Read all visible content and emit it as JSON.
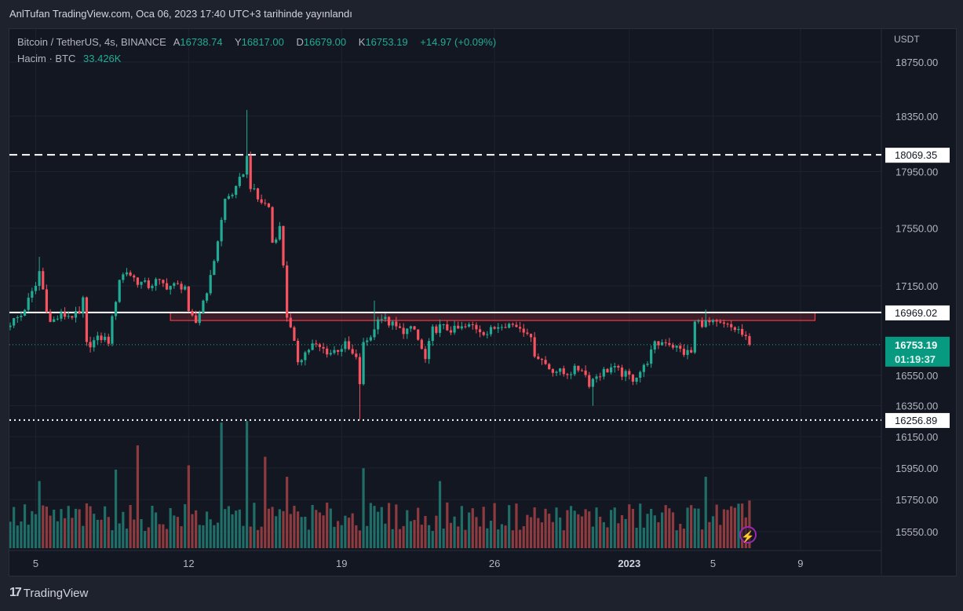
{
  "header": {
    "published": "AnlTufan TradingView.com, Oca 06, 2023 17:40 UTC+3 tarihinde yayınlandı"
  },
  "legend": {
    "symbol": "Bitcoin / TetherUS, 4s, BINANCE",
    "open_label": "A",
    "open": "16738.74",
    "high_label": "Y",
    "high": "16817.00",
    "low_label": "D",
    "low": "16679.00",
    "close_label": "K",
    "close": "16753.19",
    "change": "+14.97 (+0.09%)",
    "volume_label": "Hacim · BTC",
    "volume": "33.426K"
  },
  "price_axis": {
    "currency": "USDT"
  },
  "footer": {
    "brand": "TradingView",
    "logo_text": "TV"
  },
  "colors": {
    "up": "#22ab94",
    "down": "#f7525f",
    "vol_up": "#1f6e68",
    "vol_down": "#8e3b40",
    "bg": "#131722",
    "grid": "#1f2330",
    "zone": "#f23645"
  },
  "chart_data": {
    "type": "candlestick",
    "title": "Bitcoin / TetherUS, 4s, BINANCE",
    "scale": "log",
    "ylim": [
      15480,
      18900
    ],
    "candle_count": 204,
    "y_ticks": [
      18750,
      18350,
      17950,
      17550,
      17150,
      16550,
      16350,
      16150,
      15950,
      15750,
      15550
    ],
    "x_ticks": [
      {
        "label": "5",
        "index": 7
      },
      {
        "label": "12",
        "index": 49
      },
      {
        "label": "19",
        "index": 91
      },
      {
        "label": "26",
        "index": 133
      },
      {
        "label": "2023",
        "index": 170,
        "bold": true
      },
      {
        "label": "5",
        "index": 193
      },
      {
        "label": "9",
        "index": 217
      }
    ],
    "close_path": [
      [
        0,
        16900
      ],
      [
        3,
        16950
      ],
      [
        7,
        17150
      ],
      [
        8,
        17250
      ],
      [
        10,
        17000
      ],
      [
        11,
        16900
      ],
      [
        14,
        16950
      ],
      [
        19,
        16950
      ],
      [
        20,
        17050
      ],
      [
        21,
        16750
      ],
      [
        25,
        16800
      ],
      [
        27,
        16780
      ],
      [
        30,
        17200
      ],
      [
        32,
        17250
      ],
      [
        35,
        17180
      ],
      [
        38,
        17150
      ],
      [
        40,
        17180
      ],
      [
        43,
        17150
      ],
      [
        48,
        17150
      ],
      [
        49,
        16950
      ],
      [
        51,
        16900
      ],
      [
        53,
        17050
      ],
      [
        55,
        17200
      ],
      [
        58,
        17600
      ],
      [
        59,
        17750
      ],
      [
        62,
        17820
      ],
      [
        64,
        17950
      ],
      [
        65,
        18050
      ],
      [
        66,
        17850
      ],
      [
        68,
        17750
      ],
      [
        71,
        17700
      ],
      [
        72,
        17450
      ],
      [
        74,
        17550
      ],
      [
        75,
        17300
      ],
      [
        76,
        16950
      ],
      [
        78,
        16750
      ],
      [
        79,
        16650
      ],
      [
        81,
        16700
      ],
      [
        83,
        16750
      ],
      [
        88,
        16700
      ],
      [
        92,
        16750
      ],
      [
        95,
        16650
      ],
      [
        96,
        16500
      ],
      [
        97,
        16750
      ],
      [
        100,
        16850
      ],
      [
        101,
        16950
      ],
      [
        104,
        16900
      ],
      [
        107,
        16850
      ],
      [
        111,
        16850
      ],
      [
        114,
        16650
      ],
      [
        116,
        16850
      ],
      [
        118,
        16870
      ],
      [
        122,
        16850
      ],
      [
        127,
        16880
      ],
      [
        131,
        16830
      ],
      [
        135,
        16900
      ],
      [
        139,
        16880
      ],
      [
        142,
        16850
      ],
      [
        144,
        16700
      ],
      [
        146,
        16650
      ],
      [
        148,
        16600
      ],
      [
        150,
        16580
      ],
      [
        152,
        16560
      ],
      [
        157,
        16600
      ],
      [
        159,
        16500
      ],
      [
        161,
        16550
      ],
      [
        165,
        16600
      ],
      [
        169,
        16550
      ],
      [
        171,
        16530
      ],
      [
        174,
        16600
      ],
      [
        177,
        16750
      ],
      [
        180,
        16780
      ],
      [
        185,
        16700
      ],
      [
        187,
        16700
      ],
      [
        188,
        16900
      ],
      [
        191,
        16900
      ],
      [
        196,
        16880
      ],
      [
        200,
        16850
      ],
      [
        203,
        16753.19
      ]
    ],
    "wick_overrides": [
      {
        "index": 65,
        "high": 18395
      },
      {
        "index": 96,
        "low": 16260
      },
      {
        "index": 100,
        "high": 17050
      },
      {
        "index": 191,
        "high": 16990
      },
      {
        "index": 160,
        "low": 16350
      },
      {
        "index": 8,
        "high": 17350
      }
    ],
    "volume_unit": "BTC",
    "volume_spikes": [
      {
        "index": 58,
        "value": 88000
      },
      {
        "index": 65,
        "value": 89000
      },
      {
        "index": 49,
        "value": 58000
      },
      {
        "index": 97,
        "value": 56000
      },
      {
        "index": 35,
        "value": 72000
      },
      {
        "index": 29,
        "value": 55000
      },
      {
        "index": 70,
        "value": 64000
      },
      {
        "index": 76,
        "value": 50000
      },
      {
        "index": 191,
        "value": 50000
      },
      {
        "index": 118,
        "value": 47000
      },
      {
        "index": 8,
        "value": 47000
      },
      {
        "index": 203,
        "value": 33426
      }
    ],
    "levels": [
      {
        "name": "resistance-dashed",
        "price": 18069.35,
        "label": "18069.35",
        "style": "dashed"
      },
      {
        "name": "level-solid",
        "price": 16969.02,
        "label": "16969.02",
        "style": "solid"
      },
      {
        "name": "support-dotted",
        "price": 16256.89,
        "label": "16256.89",
        "style": "dotted"
      }
    ],
    "zone": {
      "from_index": 44,
      "to_index": 221,
      "top": 16969,
      "bottom": 16915
    },
    "last_price": {
      "price": 16753.19,
      "label": "16753.19",
      "countdown": "01:19:37"
    }
  }
}
